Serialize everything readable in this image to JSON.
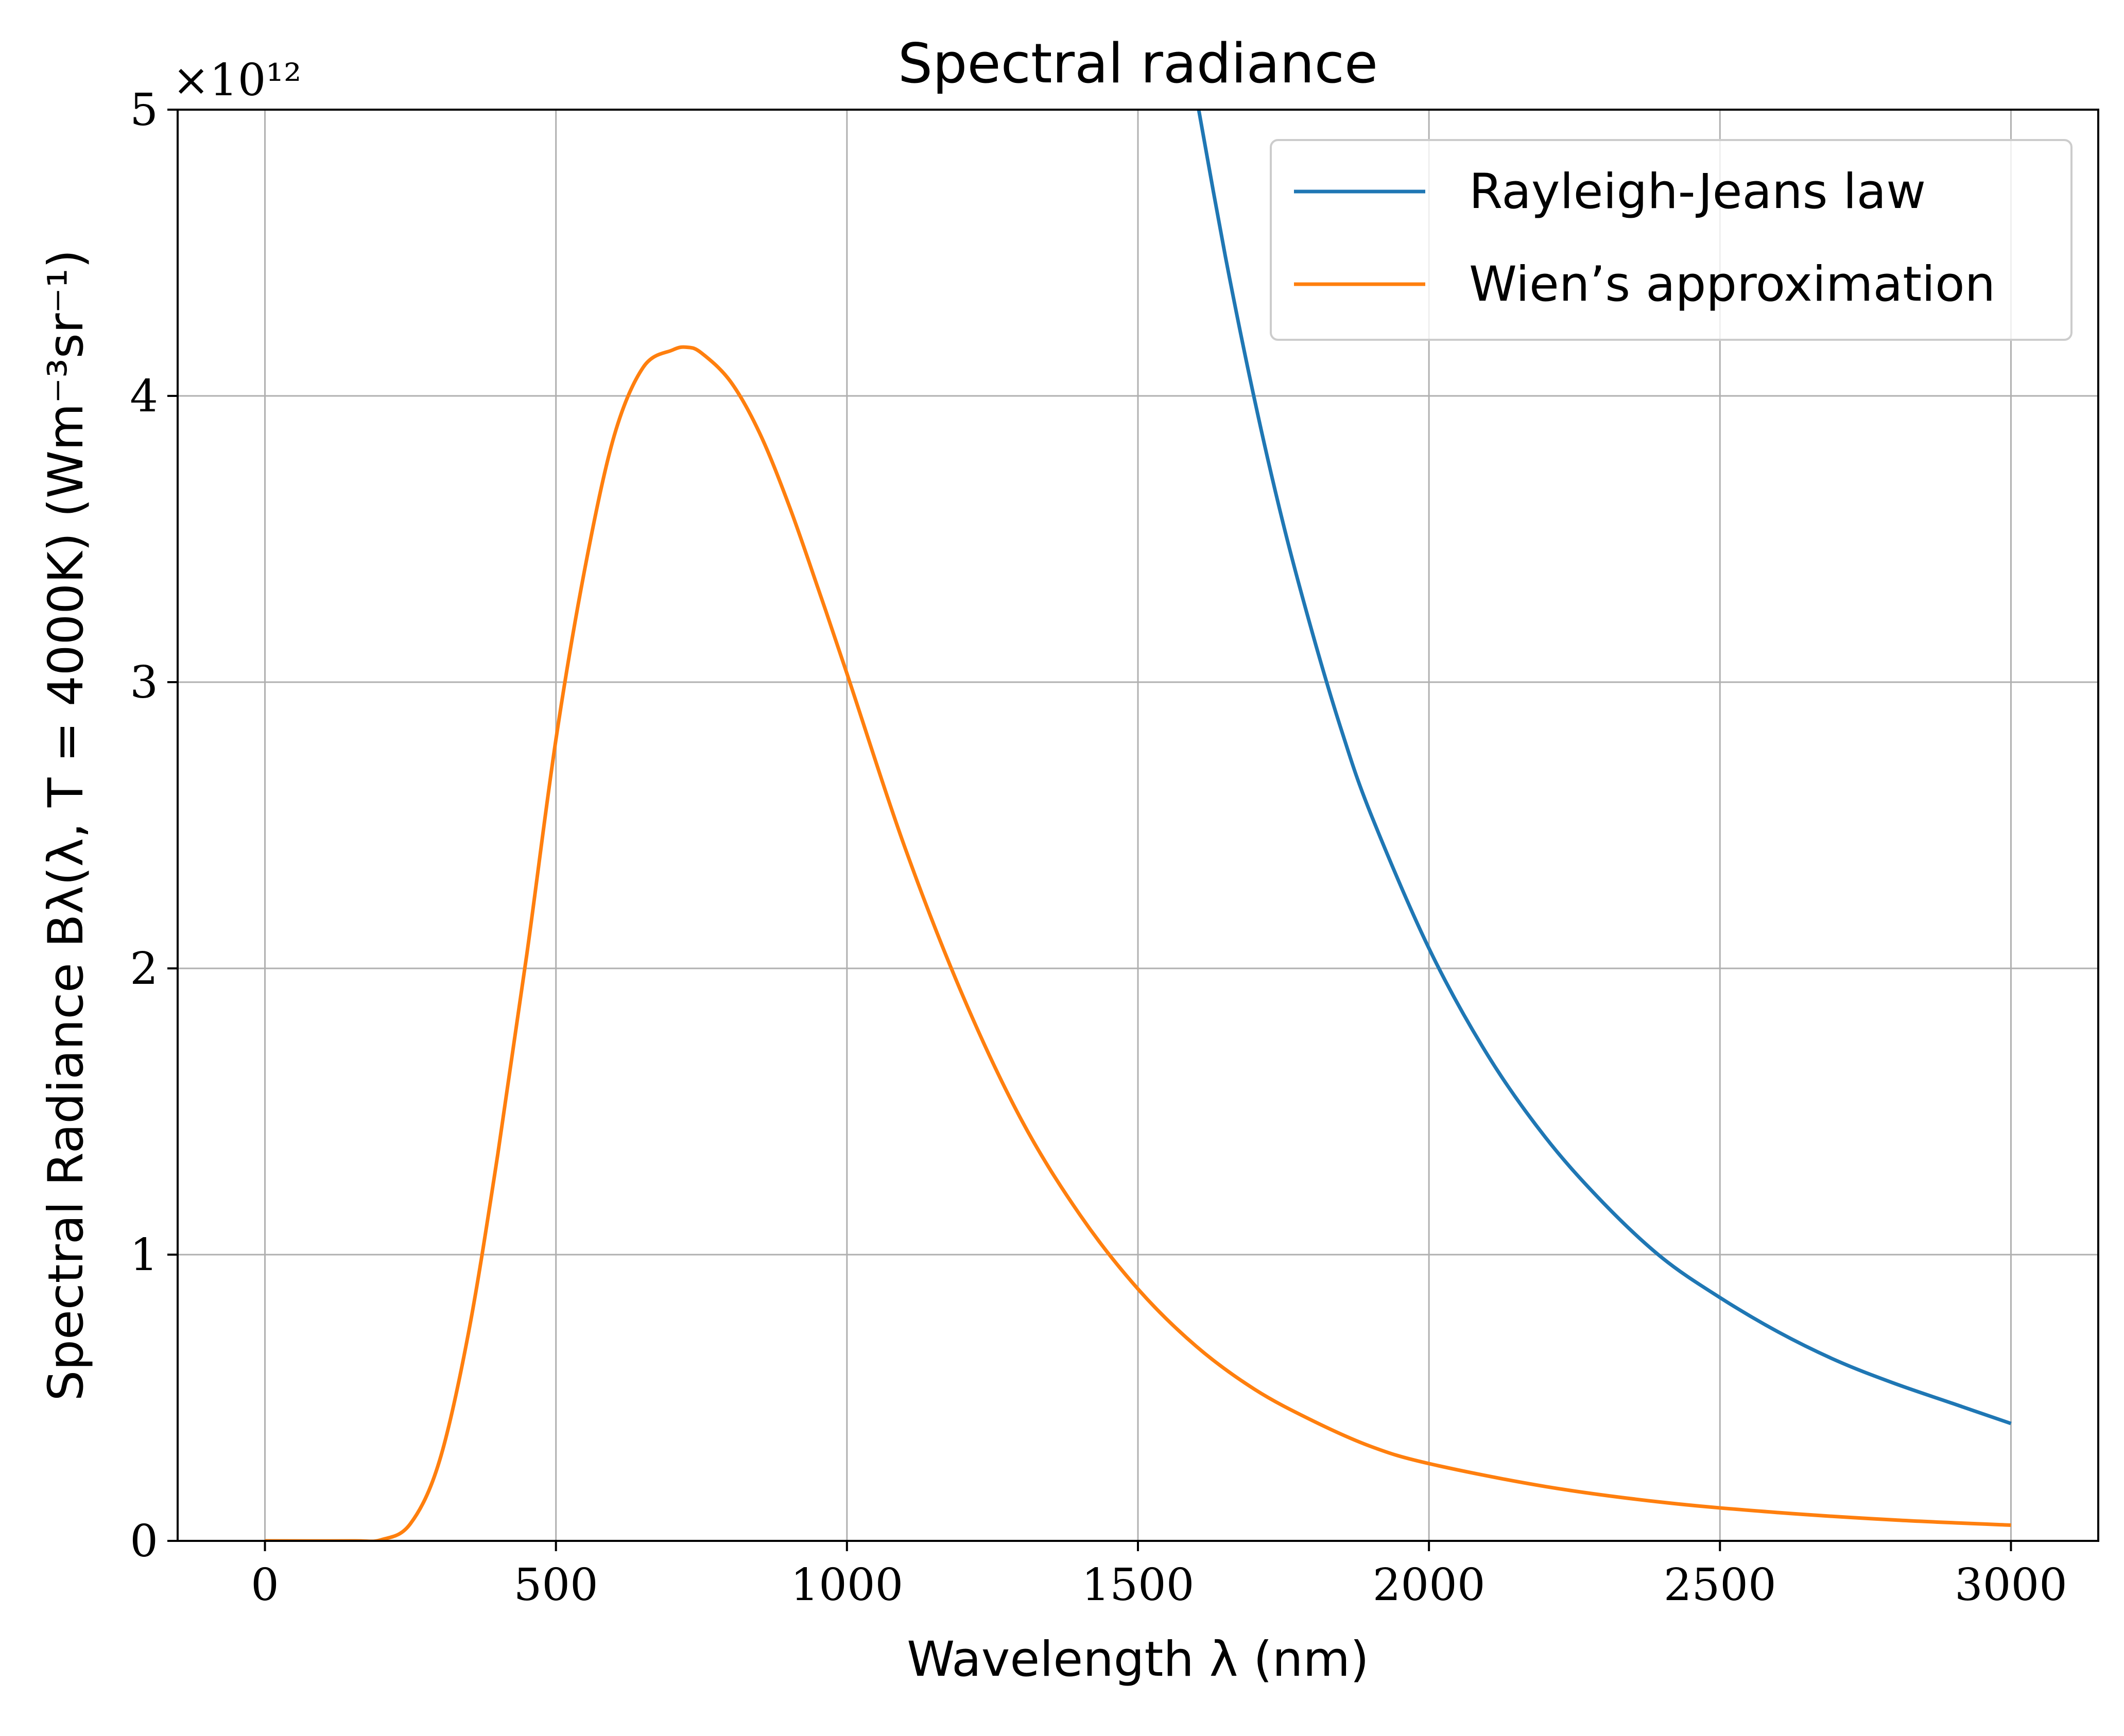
{
  "chart_data": {
    "type": "line",
    "title": "Spectral radiance",
    "xlabel": "Wavelength λ (nm)",
    "ylabel": "Spectral Radiance Bλ(λ, T = 4000K) (Wm⁻³sr⁻¹)",
    "y_offset_label": "×10¹²",
    "xlim": [
      -150,
      3150
    ],
    "ylim": [
      0,
      5
    ],
    "x_ticks": [
      0,
      500,
      1000,
      1500,
      2000,
      2500,
      3000
    ],
    "x_tick_labels": [
      "0",
      "500",
      "1000",
      "1500",
      "2000",
      "2500",
      "3000"
    ],
    "y_ticks": [
      0,
      1,
      2,
      3,
      4,
      5
    ],
    "y_tick_labels": [
      "0",
      "1",
      "2",
      "3",
      "4",
      "5"
    ],
    "grid": true,
    "legend_position": "top-right",
    "series": [
      {
        "name": "Rayleigh-Jeans law",
        "color": "#1f77b4",
        "x": [
          1600,
          1650,
          1700,
          1750,
          1800,
          1850,
          1900,
          2000,
          2100,
          2200,
          2300,
          2400,
          2500,
          2600,
          2700,
          2800,
          2900,
          3000
        ],
        "y": [
          5.05,
          4.49,
          3.99,
          3.55,
          3.17,
          2.83,
          2.54,
          2.07,
          1.7,
          1.41,
          1.18,
          0.99,
          0.85,
          0.73,
          0.63,
          0.55,
          0.48,
          0.41
        ]
      },
      {
        "name": "Wien’s approximation",
        "color": "#ff7f0e",
        "x": [
          0,
          150,
          200,
          250,
          300,
          350,
          400,
          450,
          500,
          550,
          600,
          650,
          700,
          725,
          750,
          800,
          850,
          900,
          950,
          1000,
          1100,
          1200,
          1300,
          1400,
          1500,
          1600,
          1700,
          1800,
          1900,
          2000,
          2200,
          2400,
          2600,
          2800,
          3000
        ],
        "y": [
          0,
          0,
          0.004,
          0.06,
          0.28,
          0.73,
          1.35,
          2.05,
          2.8,
          3.4,
          3.86,
          4.1,
          4.16,
          4.17,
          4.15,
          4.05,
          3.87,
          3.62,
          3.33,
          3.03,
          2.42,
          1.9,
          1.47,
          1.14,
          0.88,
          0.68,
          0.53,
          0.42,
          0.33,
          0.27,
          0.19,
          0.135,
          0.099,
          0.073,
          0.055
        ]
      }
    ]
  }
}
